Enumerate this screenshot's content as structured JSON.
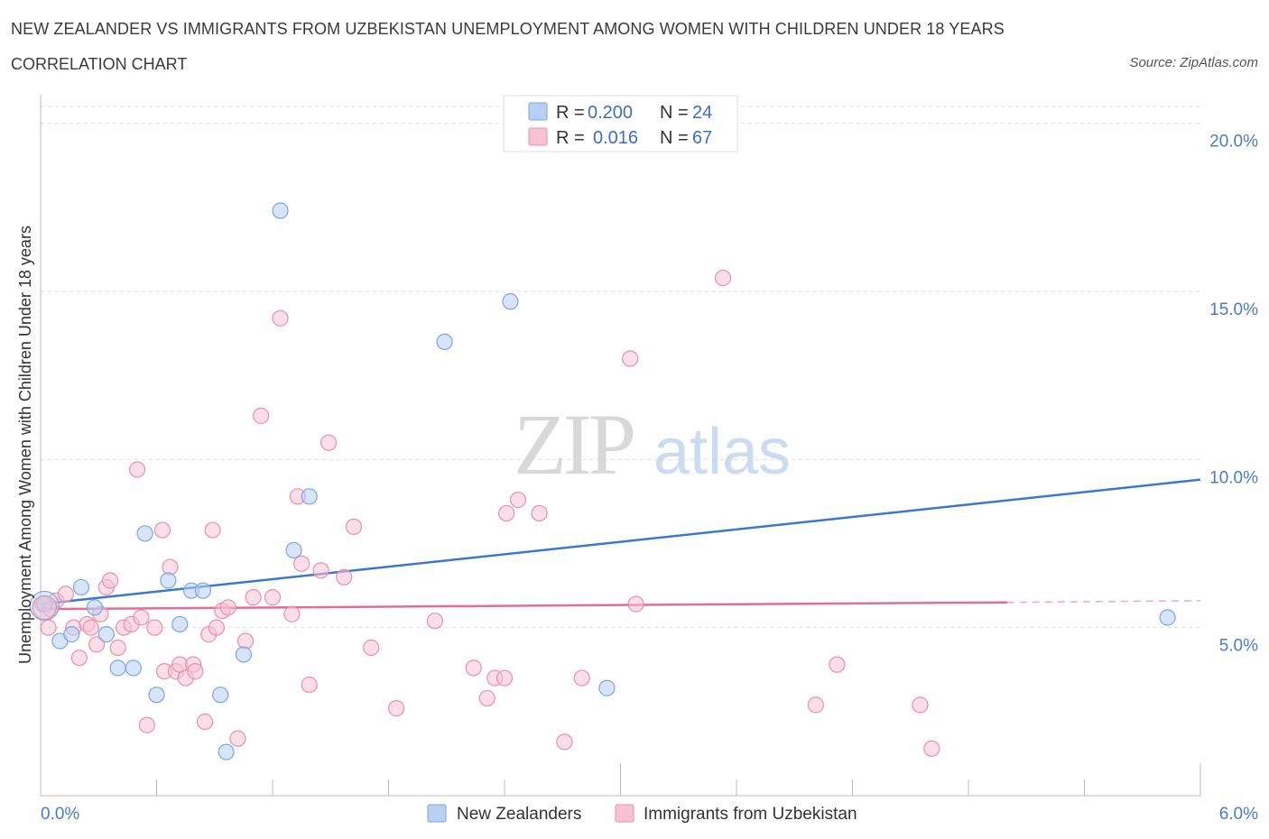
{
  "header": {
    "title": "NEW ZEALANDER VS IMMIGRANTS FROM UZBEKISTAN UNEMPLOYMENT AMONG WOMEN WITH CHILDREN UNDER 18 YEARS",
    "subtitle": "CORRELATION CHART",
    "source": "Source: ZipAtlas.com"
  },
  "watermark": {
    "zip": "ZIP",
    "atlas": "atlas"
  },
  "colors": {
    "blue_fill": "#b8d0f2",
    "blue_stroke": "#7aa6e0",
    "blue_line": "#3a78d0",
    "pink_fill": "#f7c3d3",
    "pink_stroke": "#ea8fae",
    "pink_line": "#e36d98",
    "grid": "#dddddd",
    "tick_text": "#4a7cc7"
  },
  "chart_data": {
    "type": "scatter",
    "title": "NEW ZEALANDER VS IMMIGRANTS FROM UZBEKISTAN UNEMPLOYMENT AMONG WOMEN WITH CHILDREN UNDER 18 YEARS",
    "xlabel": "",
    "ylabel": "Unemployment Among Women with Children Under 18 years",
    "xlim": [
      0,
      6
    ],
    "ylim": [
      0.0,
      20.5
    ],
    "x_tick_labels": [
      "0.0%",
      "6.0%"
    ],
    "y_ticks": [
      5,
      10,
      15,
      20
    ],
    "y_tick_labels": [
      "5.0%",
      "10.0%",
      "15.0%",
      "20.0%"
    ],
    "legend_position": "top-center",
    "legend": [
      {
        "r_label": "R =",
        "r_value": "0.200",
        "n_label": "N =",
        "n_value": "24"
      },
      {
        "r_label": "R =",
        "r_value": "0.016",
        "n_label": "N =",
        "n_value": "67"
      }
    ],
    "series": [
      {
        "name": "New Zealanders",
        "color": "#b8d0f2",
        "trend": {
          "x": [
            0,
            6
          ],
          "y": [
            5.7,
            9.4
          ]
        },
        "points": [
          [
            0.02,
            5.7
          ],
          [
            0.1,
            4.6
          ],
          [
            0.16,
            4.8
          ],
          [
            0.21,
            6.2
          ],
          [
            0.28,
            5.6
          ],
          [
            0.34,
            4.8
          ],
          [
            0.4,
            3.8
          ],
          [
            0.48,
            3.8
          ],
          [
            0.54,
            7.8
          ],
          [
            0.6,
            3.0
          ],
          [
            0.66,
            6.4
          ],
          [
            0.72,
            5.1
          ],
          [
            0.78,
            6.1
          ],
          [
            0.84,
            6.1
          ],
          [
            0.93,
            3.0
          ],
          [
            0.96,
            1.3
          ],
          [
            1.05,
            4.2
          ],
          [
            1.24,
            17.4
          ],
          [
            1.31,
            7.3
          ],
          [
            1.39,
            8.9
          ],
          [
            2.09,
            13.5
          ],
          [
            2.43,
            14.7
          ],
          [
            2.93,
            3.2
          ],
          [
            5.83,
            5.3
          ]
        ]
      },
      {
        "name": "Immigrants from Uzbekistan",
        "color": "#f7c3d3",
        "trend": {
          "x": [
            0,
            5.0
          ],
          "y": [
            5.55,
            5.75
          ]
        },
        "trend_dashed": {
          "x": [
            5.0,
            6.0
          ],
          "y": [
            5.75,
            5.8
          ]
        },
        "points": [
          [
            0.01,
            5.7
          ],
          [
            0.04,
            5.0
          ],
          [
            0.08,
            5.8
          ],
          [
            0.13,
            6.0
          ],
          [
            0.17,
            5.0
          ],
          [
            0.2,
            4.1
          ],
          [
            0.24,
            5.1
          ],
          [
            0.26,
            5.0
          ],
          [
            0.29,
            4.5
          ],
          [
            0.31,
            5.4
          ],
          [
            0.34,
            6.2
          ],
          [
            0.36,
            6.4
          ],
          [
            0.4,
            4.4
          ],
          [
            0.43,
            5.0
          ],
          [
            0.47,
            5.1
          ],
          [
            0.5,
            9.7
          ],
          [
            0.52,
            5.3
          ],
          [
            0.55,
            2.1
          ],
          [
            0.59,
            5.0
          ],
          [
            0.63,
            7.9
          ],
          [
            0.64,
            3.7
          ],
          [
            0.67,
            6.8
          ],
          [
            0.7,
            3.7
          ],
          [
            0.72,
            3.9
          ],
          [
            0.75,
            3.5
          ],
          [
            0.79,
            3.9
          ],
          [
            0.8,
            3.7
          ],
          [
            0.85,
            2.2
          ],
          [
            0.87,
            4.8
          ],
          [
            0.89,
            7.9
          ],
          [
            0.91,
            5.0
          ],
          [
            0.94,
            5.5
          ],
          [
            0.97,
            5.6
          ],
          [
            1.02,
            1.7
          ],
          [
            1.06,
            4.6
          ],
          [
            1.1,
            5.9
          ],
          [
            1.14,
            11.3
          ],
          [
            1.2,
            5.9
          ],
          [
            1.24,
            14.2
          ],
          [
            1.3,
            5.4
          ],
          [
            1.33,
            8.9
          ],
          [
            1.35,
            6.9
          ],
          [
            1.39,
            3.3
          ],
          [
            1.45,
            6.7
          ],
          [
            1.49,
            10.5
          ],
          [
            1.57,
            6.5
          ],
          [
            1.62,
            8.0
          ],
          [
            1.71,
            4.4
          ],
          [
            1.84,
            2.6
          ],
          [
            2.04,
            5.2
          ],
          [
            2.24,
            3.8
          ],
          [
            2.31,
            2.9
          ],
          [
            2.35,
            3.5
          ],
          [
            2.4,
            3.5
          ],
          [
            2.41,
            8.4
          ],
          [
            2.47,
            8.8
          ],
          [
            2.58,
            8.4
          ],
          [
            2.71,
            1.6
          ],
          [
            2.8,
            3.5
          ],
          [
            3.05,
            13.0
          ],
          [
            3.08,
            5.7
          ],
          [
            3.53,
            15.4
          ],
          [
            4.01,
            2.7
          ],
          [
            4.12,
            3.9
          ],
          [
            4.55,
            2.7
          ],
          [
            4.61,
            1.4
          ],
          [
            0.05,
            5.55
          ]
        ]
      }
    ],
    "bottom_legend": [
      "New Zealanders",
      "Immigrants from Uzbekistan"
    ]
  }
}
